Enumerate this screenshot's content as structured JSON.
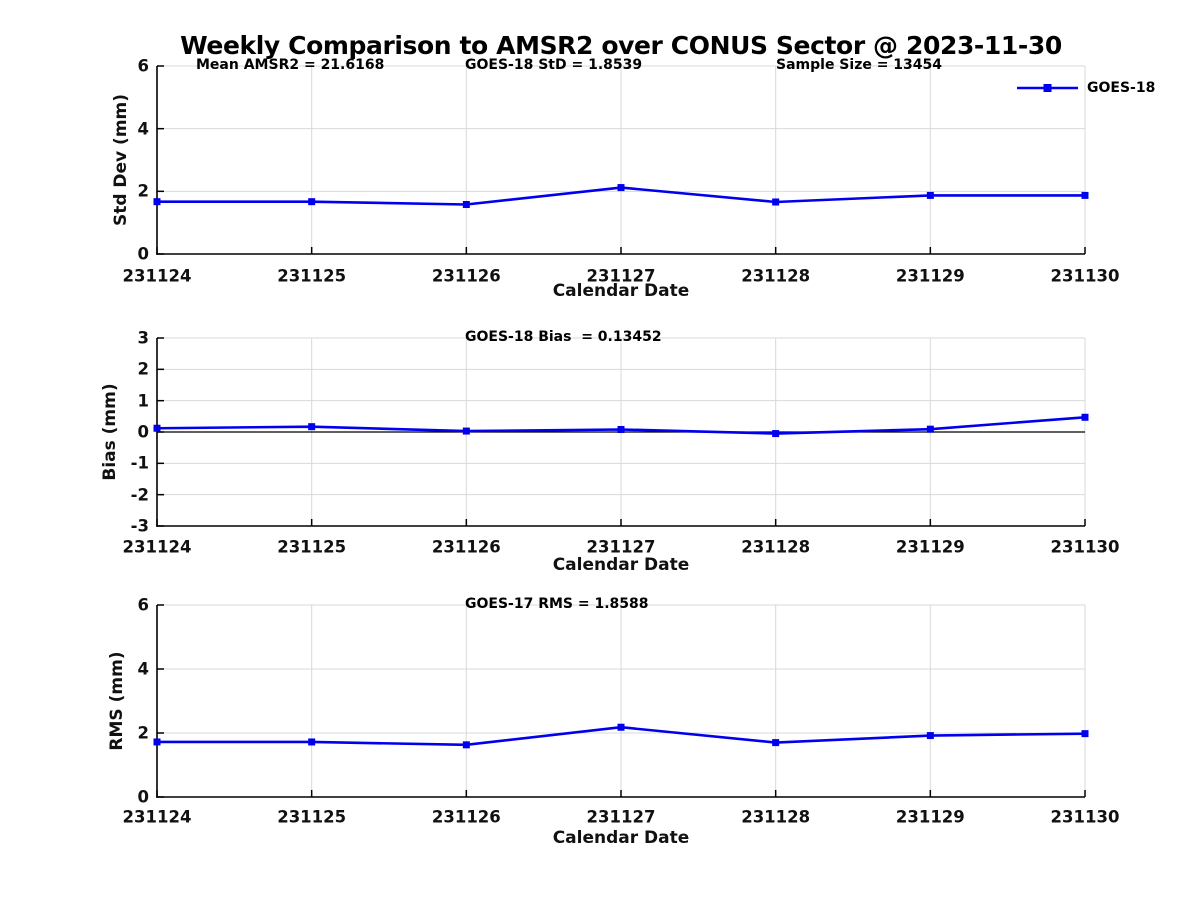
{
  "title": "Weekly Comparison to AMSR2 over CONUS Sector @ 2023-11-30",
  "colors": {
    "series": "#0000EE",
    "grid": "#D9D9D9",
    "axis": "#000000",
    "zero_line": "#000000"
  },
  "chart_data": [
    {
      "type": "line",
      "annotations": [
        "Mean AMSR2 = 21.6168",
        "GOES-18 StD = 1.8539",
        "Sample Size = 13454"
      ],
      "ylabel": "Std Dev (mm)",
      "xlabel": "Calendar Date",
      "categories": [
        "231124",
        "231125",
        "231126",
        "231127",
        "231128",
        "231129",
        "231130"
      ],
      "series": [
        {
          "name": "GOES-18",
          "color": "#0000EE",
          "marker": "square",
          "values": [
            1.67,
            1.67,
            1.58,
            2.12,
            1.66,
            1.87,
            1.87
          ]
        }
      ],
      "ylim": [
        0,
        6
      ],
      "yticks": [
        0,
        2,
        4,
        6
      ],
      "grid": true,
      "legend": {
        "label": "GOES-18",
        "position": "top-right"
      }
    },
    {
      "type": "line",
      "annotations": [
        "GOES-18 Bias  = 0.13452"
      ],
      "ylabel": "Bias (mm)",
      "xlabel": "Calendar Date",
      "categories": [
        "231124",
        "231125",
        "231126",
        "231127",
        "231128",
        "231129",
        "231130"
      ],
      "series": [
        {
          "name": "GOES-18",
          "color": "#0000EE",
          "marker": "square",
          "values": [
            0.12,
            0.17,
            0.03,
            0.08,
            -0.05,
            0.09,
            0.47
          ]
        }
      ],
      "ylim": [
        -3,
        3
      ],
      "yticks": [
        -3,
        -2,
        -1,
        0,
        1,
        2,
        3
      ],
      "grid": true,
      "zero_line": true
    },
    {
      "type": "line",
      "annotations": [
        "GOES-17 RMS = 1.8588"
      ],
      "ylabel": "RMS (mm)",
      "xlabel": "Calendar Date",
      "categories": [
        "231124",
        "231125",
        "231126",
        "231127",
        "231128",
        "231129",
        "231130"
      ],
      "series": [
        {
          "name": "GOES-18",
          "color": "#0000EE",
          "marker": "square",
          "values": [
            1.72,
            1.72,
            1.63,
            2.18,
            1.7,
            1.92,
            1.98
          ]
        }
      ],
      "ylim": [
        0,
        6
      ],
      "yticks": [
        0,
        2,
        4,
        6
      ],
      "grid": true
    }
  ]
}
